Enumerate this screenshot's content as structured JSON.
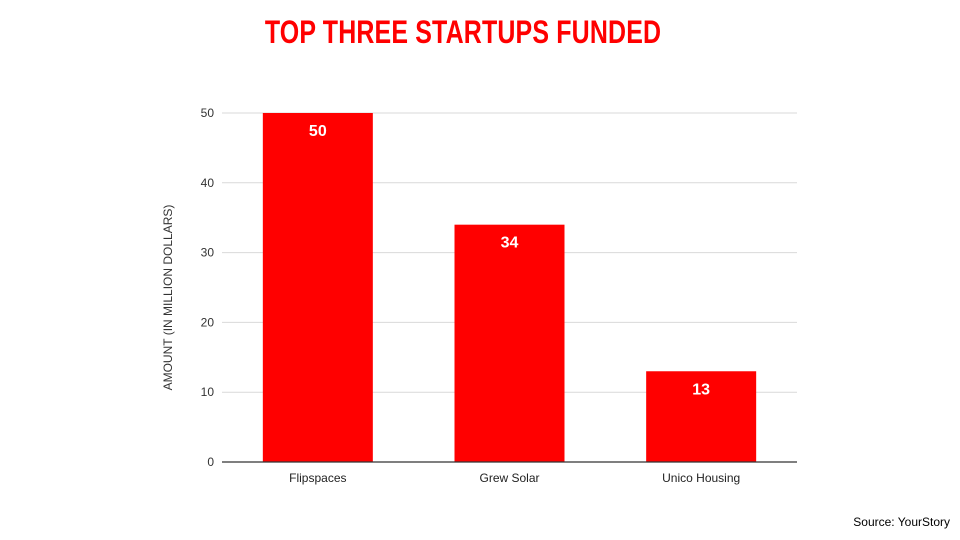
{
  "source": "Source: YourStory",
  "colors": {
    "bar": "#ff0000",
    "title": "#ff0000",
    "gridline": "#d9d9d9",
    "baseline": "#333333",
    "bar_label": "#ffffff"
  },
  "chart_data": {
    "type": "bar",
    "title": "TOP THREE STARTUPS FUNDED",
    "xlabel": "",
    "ylabel": "AMOUNT (IN MILLION DOLLARS)",
    "categories": [
      "Flipspaces",
      "Grew Solar",
      "Unico Housing"
    ],
    "values": [
      50,
      34,
      13
    ],
    "data_labels": [
      "50",
      "34",
      "13"
    ],
    "ylim": [
      0,
      50
    ],
    "yticks": [
      0,
      10,
      20,
      30,
      40,
      50
    ],
    "grid": true,
    "legend": "none"
  }
}
